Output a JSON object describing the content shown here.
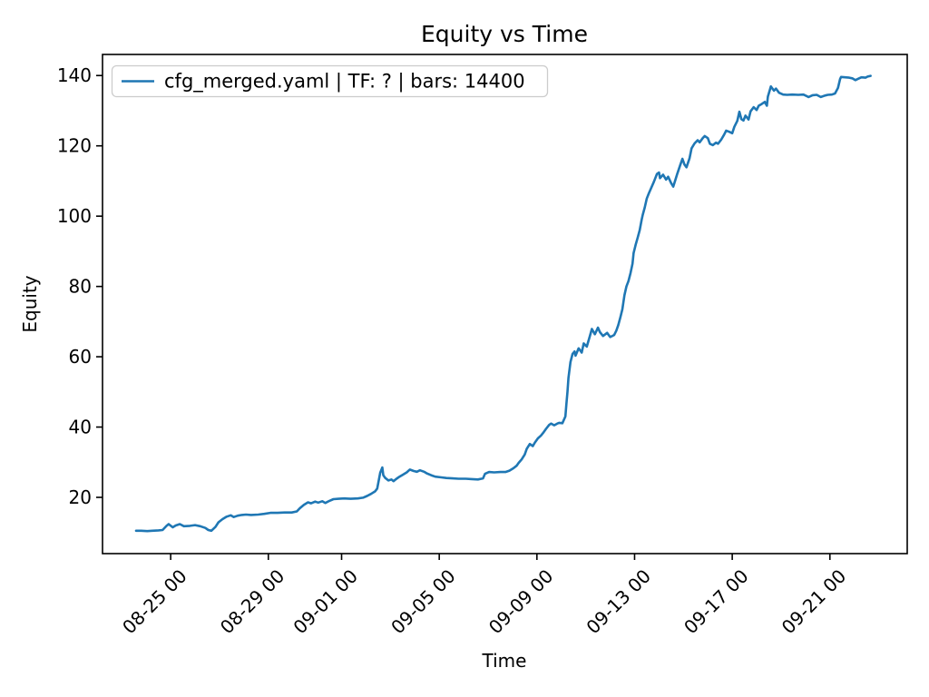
{
  "figure": {
    "background": "#ffffff",
    "text_color": "#000000"
  },
  "chart_data": {
    "type": "line",
    "title": "Equity vs Time",
    "xlabel": "Time",
    "ylabel": "Equity",
    "grid": false,
    "line_color": "#1f77b4",
    "x_domain": [
      "08-22 05",
      "09-24 04"
    ],
    "y_domain": [
      4,
      146
    ],
    "y_ticks": [
      20,
      40,
      60,
      80,
      100,
      120,
      140
    ],
    "x_tick_labels": [
      "08-25 00",
      "08-29 00",
      "09-01 00",
      "09-05 00",
      "09-09 00",
      "09-13 00",
      "09-17 00",
      "09-21 00"
    ],
    "legend": {
      "position": "upper left",
      "entries": [
        {
          "label": "cfg_merged.yaml | TF: ? | bars: 14400",
          "color": "#1f77b4"
        }
      ]
    },
    "series": [
      {
        "name": "cfg_merged.yaml | TF: ? | bars: 14400",
        "color": "#1f77b4",
        "points": [
          [
            "08-23 14",
            10.5
          ],
          [
            "08-23 19",
            10.5
          ],
          [
            "08-24 01",
            10.4
          ],
          [
            "08-24 06",
            10.5
          ],
          [
            "08-24 12",
            10.6
          ],
          [
            "08-24 16",
            10.7
          ],
          [
            "08-24 20",
            11.9
          ],
          [
            "08-24 22",
            12.4
          ],
          [
            "08-25 02",
            11.5
          ],
          [
            "08-25 05",
            12.0
          ],
          [
            "08-25 09",
            12.4
          ],
          [
            "08-25 13",
            11.8
          ],
          [
            "08-25 19",
            11.9
          ],
          [
            "08-26 00",
            12.1
          ],
          [
            "08-26 05",
            11.8
          ],
          [
            "08-26 10",
            11.3
          ],
          [
            "08-26 13",
            10.7
          ],
          [
            "08-26 16",
            10.5
          ],
          [
            "08-26 20",
            11.6
          ],
          [
            "08-26 23",
            12.9
          ],
          [
            "08-27 03",
            13.8
          ],
          [
            "08-27 07",
            14.5
          ],
          [
            "08-27 11",
            14.9
          ],
          [
            "08-27 14",
            14.4
          ],
          [
            "08-27 18",
            14.8
          ],
          [
            "08-27 22",
            15.0
          ],
          [
            "08-28 02",
            15.1
          ],
          [
            "08-28 07",
            15.0
          ],
          [
            "08-28 14",
            15.1
          ],
          [
            "08-28 20",
            15.3
          ],
          [
            "08-29 02",
            15.6
          ],
          [
            "08-29 09",
            15.6
          ],
          [
            "08-29 16",
            15.7
          ],
          [
            "08-29 23",
            15.7
          ],
          [
            "08-30 04",
            16.0
          ],
          [
            "08-30 07",
            16.9
          ],
          [
            "08-30 11",
            17.9
          ],
          [
            "08-30 15",
            18.6
          ],
          [
            "08-30 18",
            18.3
          ],
          [
            "08-30 22",
            18.8
          ],
          [
            "08-31 01",
            18.5
          ],
          [
            "08-31 05",
            18.9
          ],
          [
            "08-31 08",
            18.4
          ],
          [
            "08-31 12",
            19.0
          ],
          [
            "08-31 16",
            19.5
          ],
          [
            "08-31 21",
            19.6
          ],
          [
            "09-01 03",
            19.7
          ],
          [
            "09-01 09",
            19.6
          ],
          [
            "09-01 16",
            19.7
          ],
          [
            "09-01 21",
            19.9
          ],
          [
            "09-02 01",
            20.4
          ],
          [
            "09-02 05",
            21.0
          ],
          [
            "09-02 09",
            21.7
          ],
          [
            "09-02 11",
            22.5
          ],
          [
            "09-02 14",
            27.0
          ],
          [
            "09-02 16",
            28.5
          ],
          [
            "09-02 17",
            26.3
          ],
          [
            "09-02 19",
            25.5
          ],
          [
            "09-02 22",
            24.8
          ],
          [
            "09-03 01",
            25.1
          ],
          [
            "09-03 03",
            24.6
          ],
          [
            "09-03 06",
            25.3
          ],
          [
            "09-03 09",
            25.9
          ],
          [
            "09-03 12",
            26.4
          ],
          [
            "09-03 16",
            27.1
          ],
          [
            "09-03 19",
            27.9
          ],
          [
            "09-03 23",
            27.5
          ],
          [
            "09-04 02",
            27.3
          ],
          [
            "09-04 05",
            27.7
          ],
          [
            "09-04 09",
            27.3
          ],
          [
            "09-04 12",
            26.8
          ],
          [
            "09-04 16",
            26.3
          ],
          [
            "09-04 20",
            25.9
          ],
          [
            "09-05 02",
            25.7
          ],
          [
            "09-05 07",
            25.5
          ],
          [
            "09-05 13",
            25.4
          ],
          [
            "09-05 19",
            25.3
          ],
          [
            "09-06 02",
            25.3
          ],
          [
            "09-06 08",
            25.2
          ],
          [
            "09-06 14",
            25.1
          ],
          [
            "09-06 19",
            25.4
          ],
          [
            "09-06 21",
            26.7
          ],
          [
            "09-07 01",
            27.2
          ],
          [
            "09-07 06",
            27.1
          ],
          [
            "09-07 12",
            27.2
          ],
          [
            "09-07 17",
            27.2
          ],
          [
            "09-07 21",
            27.6
          ],
          [
            "09-08 01",
            28.3
          ],
          [
            "09-08 04",
            29.0
          ],
          [
            "09-08 06",
            29.8
          ],
          [
            "09-08 09",
            30.8
          ],
          [
            "09-08 12",
            32.2
          ],
          [
            "09-08 14",
            33.8
          ],
          [
            "09-08 17",
            35.2
          ],
          [
            "09-08 20",
            34.6
          ],
          [
            "09-08 22",
            35.6
          ],
          [
            "09-09 01",
            36.8
          ],
          [
            "09-09 04",
            37.6
          ],
          [
            "09-09 06",
            38.3
          ],
          [
            "09-09 09",
            39.5
          ],
          [
            "09-09 12",
            40.6
          ],
          [
            "09-09 14",
            41.0
          ],
          [
            "09-09 17",
            40.5
          ],
          [
            "09-09 20",
            41.0
          ],
          [
            "09-09 22",
            41.2
          ],
          [
            "09-10 01",
            41.1
          ],
          [
            "09-10 04",
            43.0
          ],
          [
            "09-10 05",
            46.5
          ],
          [
            "09-10 06",
            50.0
          ],
          [
            "09-10 07",
            54.0
          ],
          [
            "09-10 09",
            58.5
          ],
          [
            "09-10 11",
            60.8
          ],
          [
            "09-10 13",
            61.5
          ],
          [
            "09-10 14",
            60.3
          ],
          [
            "09-10 17",
            62.4
          ],
          [
            "09-10 20",
            61.2
          ],
          [
            "09-10 22",
            63.8
          ],
          [
            "09-11 01",
            62.9
          ],
          [
            "09-11 04",
            65.8
          ],
          [
            "09-11 06",
            67.9
          ],
          [
            "09-11 09",
            66.4
          ],
          [
            "09-11 12",
            68.3
          ],
          [
            "09-11 14",
            67.0
          ],
          [
            "09-11 17",
            65.9
          ],
          [
            "09-11 21",
            66.8
          ],
          [
            "09-12 00",
            65.6
          ],
          [
            "09-12 04",
            66.2
          ],
          [
            "09-12 06",
            67.4
          ],
          [
            "09-12 08",
            69.0
          ],
          [
            "09-12 10",
            71.2
          ],
          [
            "09-12 12",
            73.5
          ],
          [
            "09-12 14",
            77.5
          ],
          [
            "09-12 16",
            80.0
          ],
          [
            "09-12 18",
            81.5
          ],
          [
            "09-12 20",
            83.8
          ],
          [
            "09-12 22",
            86.5
          ],
          [
            "09-12 23",
            89.5
          ],
          [
            "09-13 01",
            91.8
          ],
          [
            "09-13 03",
            93.8
          ],
          [
            "09-13 05",
            96.0
          ],
          [
            "09-13 07",
            99.0
          ],
          [
            "09-13 08",
            100.3
          ],
          [
            "09-13 10",
            102.5
          ],
          [
            "09-13 12",
            105.0
          ],
          [
            "09-13 14",
            106.5
          ],
          [
            "09-13 16",
            107.8
          ],
          [
            "09-13 19",
            109.8
          ],
          [
            "09-13 22",
            112.0
          ],
          [
            "09-14 00",
            112.4
          ],
          [
            "09-14 01",
            110.8
          ],
          [
            "09-14 04",
            111.8
          ],
          [
            "09-14 07",
            110.4
          ],
          [
            "09-14 09",
            111.2
          ],
          [
            "09-14 12",
            109.4
          ],
          [
            "09-14 14",
            108.4
          ],
          [
            "09-14 16",
            110.2
          ],
          [
            "09-14 18",
            112.1
          ],
          [
            "09-14 21",
            114.6
          ],
          [
            "09-14 23",
            116.3
          ],
          [
            "09-15 01",
            114.7
          ],
          [
            "09-15 03",
            113.9
          ],
          [
            "09-15 06",
            116.4
          ],
          [
            "09-15 08",
            119.3
          ],
          [
            "09-15 11",
            120.7
          ],
          [
            "09-15 14",
            121.6
          ],
          [
            "09-15 16",
            121.0
          ],
          [
            "09-15 19",
            122.2
          ],
          [
            "09-15 21",
            122.8
          ],
          [
            "09-16 00",
            122.2
          ],
          [
            "09-16 02",
            120.6
          ],
          [
            "09-16 05",
            120.2
          ],
          [
            "09-16 08",
            120.9
          ],
          [
            "09-16 10",
            120.6
          ],
          [
            "09-16 13",
            121.7
          ],
          [
            "09-16 16",
            123.2
          ],
          [
            "09-16 18",
            124.3
          ],
          [
            "09-16 21",
            124.0
          ],
          [
            "09-17 00",
            123.6
          ],
          [
            "09-17 02",
            125.4
          ],
          [
            "09-17 05",
            127.1
          ],
          [
            "09-17 07",
            129.7
          ],
          [
            "09-17 09",
            127.6
          ],
          [
            "09-17 11",
            127.2
          ],
          [
            "09-17 13",
            128.6
          ],
          [
            "09-17 16",
            127.5
          ],
          [
            "09-17 18",
            129.8
          ],
          [
            "09-17 21",
            131.0
          ],
          [
            "09-18 00",
            130.2
          ],
          [
            "09-18 02",
            131.4
          ],
          [
            "09-18 05",
            131.9
          ],
          [
            "09-18 08",
            132.5
          ],
          [
            "09-18 10",
            131.4
          ],
          [
            "09-18 11",
            134.0
          ],
          [
            "09-18 14",
            136.9
          ],
          [
            "09-18 17",
            135.7
          ],
          [
            "09-18 19",
            136.3
          ],
          [
            "09-18 22",
            135.1
          ],
          [
            "09-19 02",
            134.6
          ],
          [
            "09-19 06",
            134.5
          ],
          [
            "09-19 11",
            134.6
          ],
          [
            "09-19 17",
            134.5
          ],
          [
            "09-19 22",
            134.6
          ],
          [
            "09-20 03",
            133.9
          ],
          [
            "09-20 07",
            134.4
          ],
          [
            "09-20 11",
            134.5
          ],
          [
            "09-20 15",
            133.9
          ],
          [
            "09-20 19",
            134.3
          ],
          [
            "09-20 22",
            134.5
          ],
          [
            "09-21 02",
            134.6
          ],
          [
            "09-21 05",
            134.9
          ],
          [
            "09-21 08",
            136.5
          ],
          [
            "09-21 10",
            139.0
          ],
          [
            "09-21 11",
            139.6
          ],
          [
            "09-21 15",
            139.5
          ],
          [
            "09-21 19",
            139.4
          ],
          [
            "09-21 22",
            139.2
          ],
          [
            "09-22 01",
            138.7
          ],
          [
            "09-22 04",
            139.1
          ],
          [
            "09-22 07",
            139.5
          ],
          [
            "09-22 11",
            139.4
          ],
          [
            "09-22 13",
            139.7
          ],
          [
            "09-22 16",
            139.9
          ]
        ]
      }
    ]
  }
}
